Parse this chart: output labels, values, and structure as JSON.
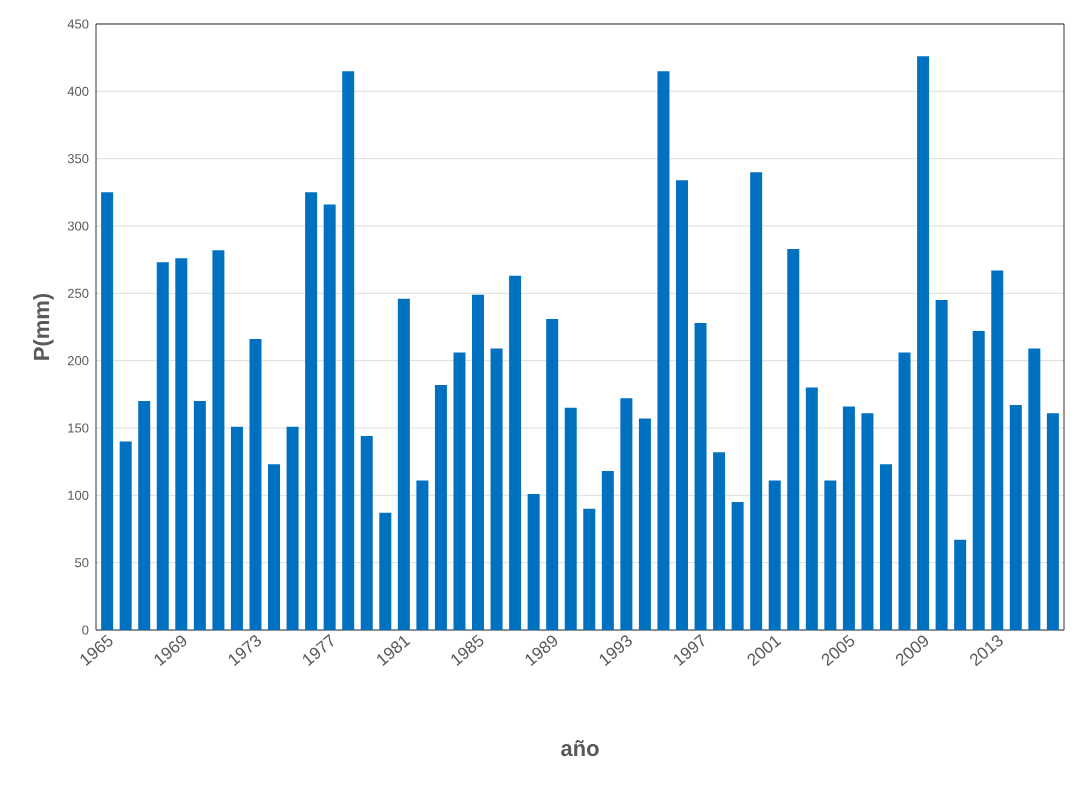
{
  "chart_data": {
    "type": "bar",
    "xlabel": "año",
    "ylabel": "P(mm)",
    "categories": [
      "1965",
      null,
      null,
      null,
      "1969",
      null,
      null,
      null,
      "1973",
      null,
      null,
      null,
      "1977",
      null,
      null,
      null,
      "1981",
      null,
      null,
      null,
      "1985",
      null,
      null,
      null,
      "1989",
      null,
      null,
      null,
      "1993",
      null,
      null,
      null,
      "1997",
      null,
      null,
      null,
      "2001",
      null,
      null,
      null,
      "2005",
      null,
      null,
      null,
      "2009",
      null,
      null,
      null,
      "2013",
      null,
      null,
      null
    ],
    "values": [
      325,
      140,
      170,
      273,
      276,
      170,
      282,
      151,
      216,
      123,
      151,
      325,
      316,
      415,
      144,
      87,
      246,
      111,
      182,
      206,
      249,
      209,
      263,
      101,
      231,
      165,
      90,
      118,
      172,
      157,
      415,
      334,
      228,
      132,
      95,
      340,
      111,
      283,
      180,
      111,
      166,
      161,
      123,
      206,
      426,
      245,
      67,
      222,
      267,
      167,
      209,
      161
    ],
    "color": "#0070c0",
    "ylim": [
      0,
      450
    ],
    "yticks": [
      0,
      50,
      100,
      150,
      200,
      250,
      300,
      350,
      400,
      450
    ],
    "grid": "y"
  }
}
